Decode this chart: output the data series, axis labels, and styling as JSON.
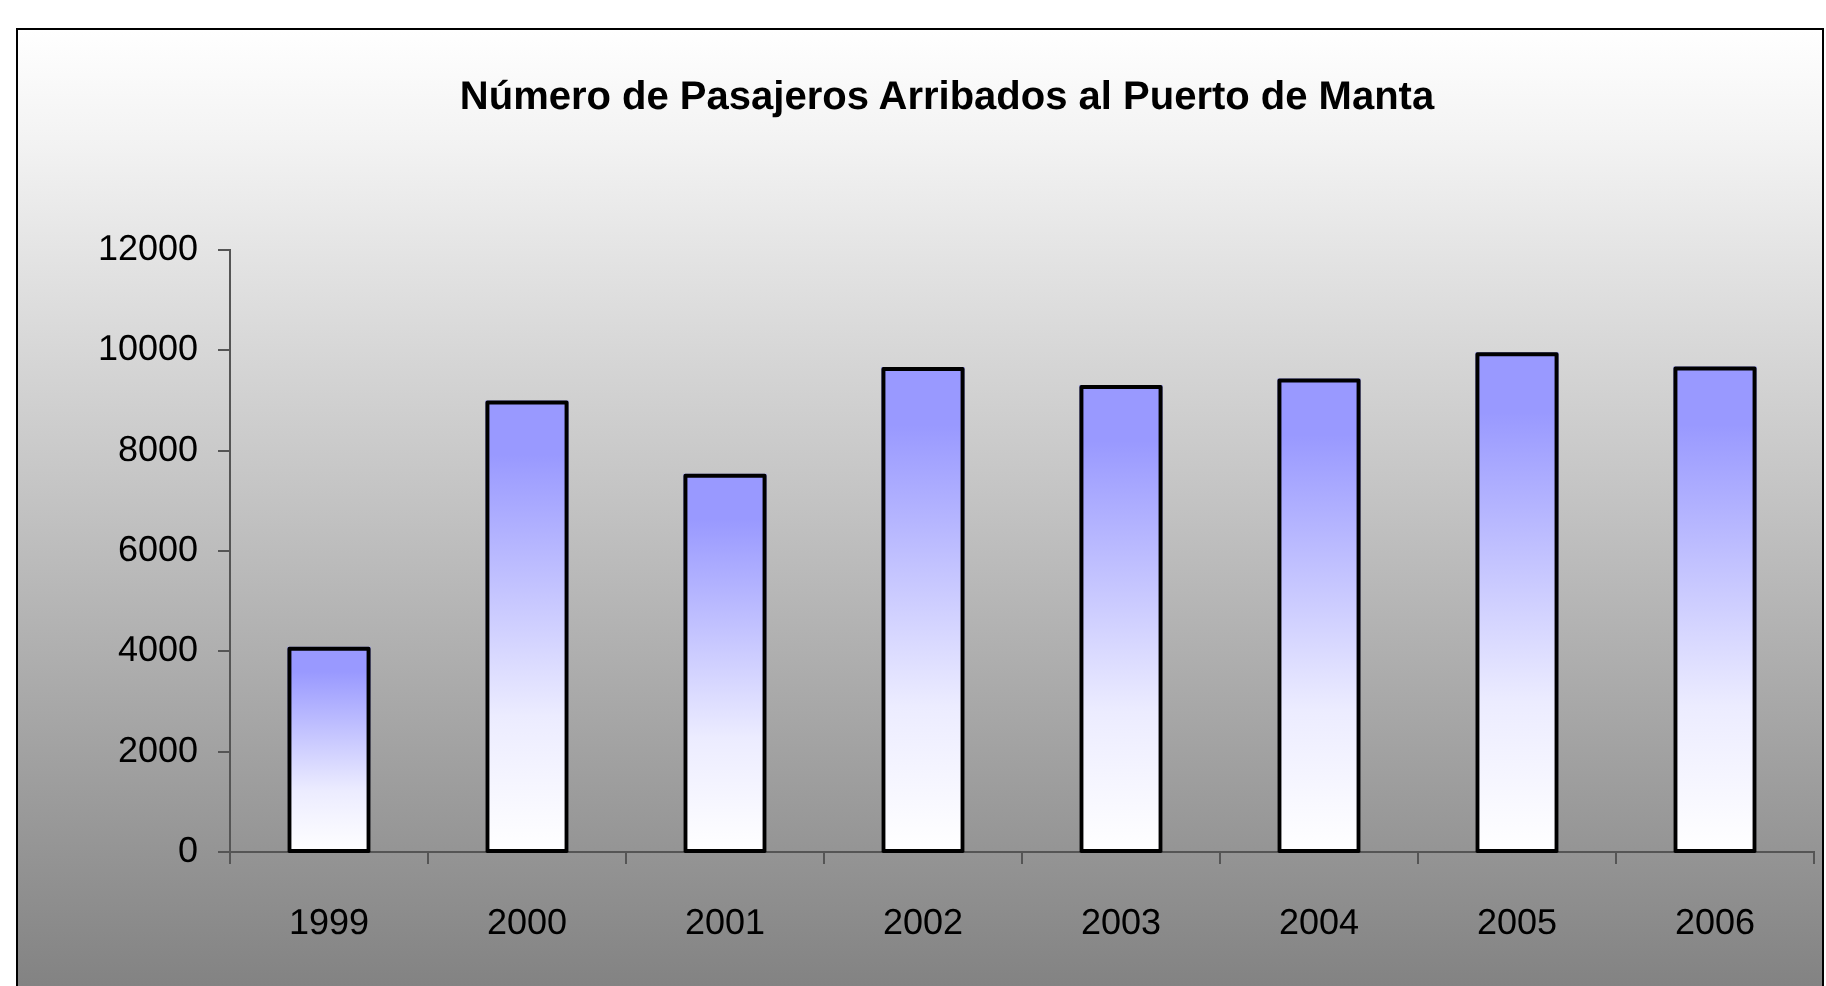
{
  "chart_data": {
    "type": "bar",
    "title": "Número de Pasajeros Arribados al Puerto de Manta",
    "categories": [
      "1999",
      "2000",
      "2001",
      "2002",
      "2003",
      "2004",
      "2005",
      "2006"
    ],
    "values": [
      4090,
      9000,
      7540,
      9670,
      9310,
      9440,
      9960,
      9680
    ],
    "color": "#9999ff",
    "ylim": [
      0,
      12000
    ],
    "yticks": [
      0,
      2000,
      4000,
      6000,
      8000,
      10000,
      12000
    ]
  }
}
